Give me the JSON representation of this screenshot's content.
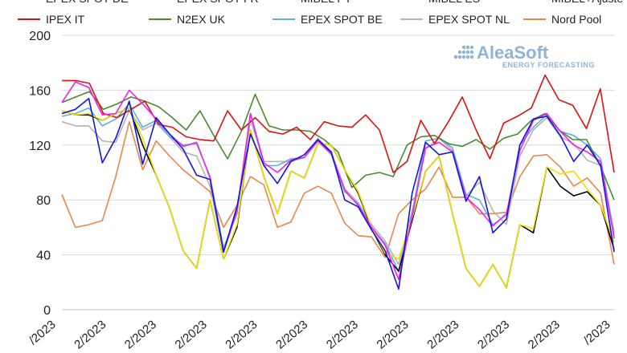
{
  "chart_data": {
    "type": "line",
    "title": "",
    "xlabel": "",
    "ylabel": "",
    "ylim": [
      0,
      200
    ],
    "yticks": [
      0,
      40,
      80,
      120,
      160,
      200
    ],
    "grid": "horizontal",
    "legend_position": "top",
    "watermark": {
      "name": "AleaSoft",
      "tagline": "ENERGY FORECASTING"
    },
    "x_tick_labels": [
      "/2023",
      "2/2023",
      "2/2023",
      "2/2023",
      "2/2023",
      "2/2023",
      "2/2023",
      "2/2023",
      "2/2023",
      "2/2023",
      "2/2023",
      "/2023"
    ],
    "series": [
      {
        "name": "EPEX SPOT DE",
        "color": "#1515e0",
        "dash": "",
        "values": [
          143,
          146,
          154,
          107,
          125,
          152,
          106,
          140,
          128,
          117,
          98,
          95,
          42,
          75,
          128,
          105,
          92,
          108,
          113,
          124,
          115,
          80,
          75,
          58,
          43,
          15,
          85,
          122,
          113,
          115,
          79,
          97,
          56,
          66,
          120,
          139,
          141,
          127,
          108,
          120,
          105,
          42
        ]
      },
      {
        "name": "EPEX SPOT FR",
        "color": "#ee22ee",
        "dash": "",
        "values": [
          151,
          166,
          162,
          142,
          143,
          160,
          150,
          139,
          128,
          119,
          122,
          96,
          42,
          72,
          143,
          107,
          100,
          109,
          111,
          123,
          114,
          87,
          76,
          60,
          47,
          22,
          68,
          118,
          122,
          115,
          82,
          73,
          61,
          70,
          116,
          138,
          143,
          130,
          120,
          115,
          108,
          52
        ]
      },
      {
        "name": "MIBEL PT",
        "color": "#f0e000",
        "dash": "",
        "values": [
          145,
          142,
          143,
          138,
          143,
          147,
          125,
          98,
          74,
          43,
          30,
          80,
          37,
          62,
          131,
          97,
          70,
          101,
          96,
          121,
          120,
          102,
          86,
          60,
          41,
          37,
          67,
          101,
          112,
          70,
          30,
          17,
          33,
          16,
          62,
          59,
          104,
          99,
          101,
          88,
          76,
          49
        ]
      },
      {
        "name": "MIBEL ES",
        "color": "#000000",
        "dash": "",
        "values": [
          145,
          142,
          142,
          138,
          143,
          147,
          120,
          98,
          74,
          43,
          30,
          80,
          37,
          60,
          131,
          97,
          70,
          101,
          96,
          121,
          120,
          102,
          85,
          59,
          40,
          28,
          65,
          101,
          112,
          70,
          30,
          17,
          33,
          16,
          62,
          56,
          104,
          90,
          83,
          86,
          76,
          44
        ]
      },
      {
        "name": "MIBEL+Ajuste",
        "color": "#000000",
        "dash": "6,4",
        "values": []
      },
      {
        "name": "IPEX IT",
        "color": "#e01010",
        "dash": "",
        "values": [
          167,
          167,
          165,
          143,
          140,
          146,
          152,
          135,
          133,
          126,
          124,
          123,
          145,
          131,
          140,
          130,
          128,
          133,
          124,
          137,
          134,
          133,
          142,
          131,
          100,
          108,
          138,
          121,
          137,
          155,
          131,
          110,
          136,
          141,
          147,
          171,
          153,
          149,
          132,
          161,
          100
        ]
      },
      {
        "name": "N2EX UK",
        "color": "#4a8a30",
        "dash": "",
        "values": [
          151,
          155,
          159,
          146,
          150,
          155,
          152,
          148,
          140,
          131,
          145,
          127,
          110,
          130,
          157,
          134,
          131,
          131,
          130,
          124,
          115,
          89,
          98,
          100,
          97,
          120,
          126,
          127,
          121,
          119,
          124,
          117,
          125,
          128,
          138,
          143,
          131,
          124,
          124,
          105,
          80
        ]
      },
      {
        "name": "EPEX SPOT BE",
        "color": "#60b0d8",
        "dash": "",
        "values": [
          141,
          143,
          147,
          134,
          139,
          150,
          133,
          138,
          126,
          120,
          121,
          97,
          45,
          70,
          143,
          105,
          105,
          110,
          111,
          123,
          113,
          86,
          77,
          60,
          48,
          28,
          70,
          123,
          125,
          118,
          84,
          80,
          62,
          69,
          120,
          133,
          142,
          130,
          127,
          120,
          110,
          54
        ]
      },
      {
        "name": "EPEX SPOT NL",
        "color": "#b4b4b4",
        "dash": "",
        "values": [
          137,
          134,
          134,
          123,
          122,
          145,
          131,
          136,
          126,
          115,
          112,
          90,
          42,
          72,
          138,
          108,
          108,
          108,
          111,
          125,
          115,
          88,
          78,
          62,
          50,
          33,
          72,
          117,
          125,
          116,
          83,
          93,
          72,
          62,
          112,
          131,
          140,
          126,
          121,
          109,
          105,
          57
        ]
      },
      {
        "name": "Nord Pool",
        "color": "#e8874a",
        "dash": "",
        "values": [
          84,
          60,
          62,
          65,
          97,
          137,
          102,
          123,
          112,
          102,
          94,
          86,
          60,
          76,
          97,
          91,
          60,
          64,
          85,
          90,
          85,
          63,
          54,
          53,
          38,
          70,
          80,
          88,
          104,
          82,
          82,
          70,
          70,
          71,
          97,
          112,
          113,
          104,
          90,
          96,
          85,
          33
        ]
      }
    ]
  }
}
